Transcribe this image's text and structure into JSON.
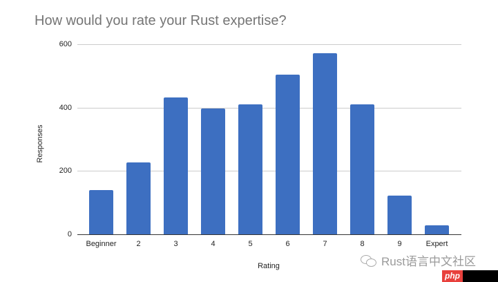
{
  "chart_data": {
    "type": "bar",
    "title": "How would you rate your Rust expertise?",
    "xlabel": "Rating",
    "ylabel": "Responses",
    "categories": [
      "Beginner",
      "2",
      "3",
      "4",
      "5",
      "6",
      "7",
      "8",
      "9",
      "Expert"
    ],
    "values": [
      140,
      227,
      432,
      397,
      410,
      505,
      572,
      410,
      122,
      28
    ],
    "ylim": [
      0,
      600
    ],
    "yticks": [
      0,
      200,
      400,
      600
    ],
    "grid": true,
    "legend": "none",
    "bar_color": "#3d6fc1"
  },
  "watermark": {
    "text": "Rust语言中文社区",
    "badge": "php"
  }
}
